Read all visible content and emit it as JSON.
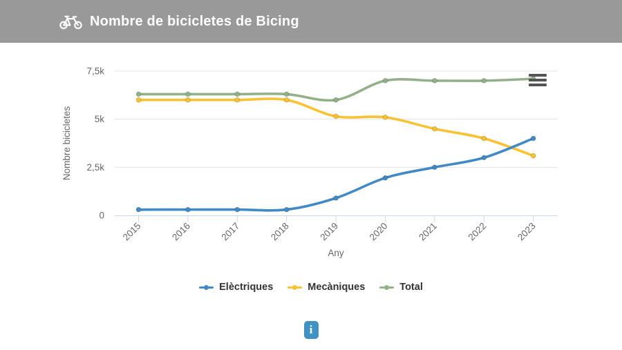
{
  "header": {
    "title": "Nombre de bicicletes de Bicing"
  },
  "chart_data": {
    "type": "line",
    "x": [
      2015,
      2016,
      2017,
      2018,
      2019,
      2020,
      2021,
      2022,
      2023
    ],
    "series": [
      {
        "name": "Elèctriques",
        "color": "#4289c5",
        "values": [
          300,
          300,
          300,
          300,
          900,
          1950,
          2500,
          3000,
          4000
        ]
      },
      {
        "name": "Mecàniques",
        "color": "#f9c233",
        "values": [
          6000,
          6000,
          6000,
          6000,
          5150,
          5100,
          4500,
          4000,
          3100
        ]
      },
      {
        "name": "Total",
        "color": "#93b189",
        "values": [
          6300,
          6300,
          6300,
          6300,
          6000,
          7000,
          7000,
          7000,
          7100
        ]
      }
    ],
    "draw_order": [
      "Total",
      "Mecàniques",
      "Elèctriques"
    ],
    "xlabel": "Any",
    "ylabel": "Nombre bicicletes",
    "yticks": [
      "0",
      "2,5k",
      "5k",
      "7,5k"
    ],
    "ytick_values": [
      0,
      2500,
      5000,
      7500
    ],
    "ylim": [
      0,
      7500
    ],
    "grid": true,
    "legend_position": "bottom"
  },
  "info_button": {
    "label": "i"
  },
  "colors": {
    "header_bg": "#999999",
    "grid_line": "#e6e6e6",
    "axis_line": "#ccd6eb",
    "tick_text": "#666666",
    "axis_title_text": "#666666",
    "legend_text": "#333333",
    "hamburger": "#545454",
    "info_bg": "#4191c4"
  }
}
